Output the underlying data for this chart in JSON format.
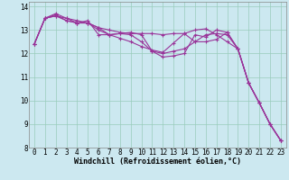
{
  "xlabel": "Windchill (Refroidissement éolien,°C)",
  "bg_color": "#cce8f0",
  "grid_color": "#99ccbb",
  "line_color": "#993399",
  "xlim": [
    -0.5,
    23.5
  ],
  "ylim": [
    8,
    14.2
  ],
  "yticks": [
    8,
    9,
    10,
    11,
    12,
    13,
    14
  ],
  "xticks": [
    0,
    1,
    2,
    3,
    4,
    5,
    6,
    7,
    8,
    9,
    10,
    11,
    12,
    13,
    14,
    15,
    16,
    17,
    18,
    19,
    20,
    21,
    22,
    23
  ],
  "series": [
    [
      12.4,
      13.5,
      13.6,
      13.4,
      13.3,
      13.4,
      12.8,
      12.8,
      12.85,
      12.9,
      12.8,
      12.1,
      11.85,
      11.9,
      12.0,
      12.8,
      12.7,
      13.0,
      12.9,
      12.2,
      10.75,
      9.9,
      9.0,
      8.3
    ],
    [
      12.4,
      13.5,
      13.6,
      13.5,
      13.3,
      13.3,
      13.1,
      12.8,
      12.85,
      12.8,
      12.5,
      12.1,
      12.0,
      12.1,
      12.2,
      12.5,
      12.5,
      12.6,
      12.9,
      12.2,
      10.75,
      9.9,
      9.0,
      8.3
    ],
    [
      12.4,
      13.5,
      13.7,
      13.5,
      13.4,
      13.3,
      13.1,
      13.0,
      12.9,
      12.85,
      12.85,
      12.85,
      12.8,
      12.85,
      12.85,
      12.5,
      12.8,
      12.85,
      12.8,
      12.2,
      10.75,
      9.9,
      9.0,
      8.3
    ],
    [
      12.4,
      13.5,
      13.65,
      13.4,
      13.3,
      13.3,
      13.0,
      12.8,
      12.65,
      12.5,
      12.3,
      12.15,
      12.05,
      12.45,
      12.85,
      13.0,
      13.05,
      12.8,
      12.5,
      12.2,
      10.75,
      9.9,
      9.0,
      8.3
    ]
  ],
  "tick_fontsize": 5.5,
  "xlabel_fontsize": 6.0,
  "marker_size": 2.5,
  "linewidth": 0.8
}
